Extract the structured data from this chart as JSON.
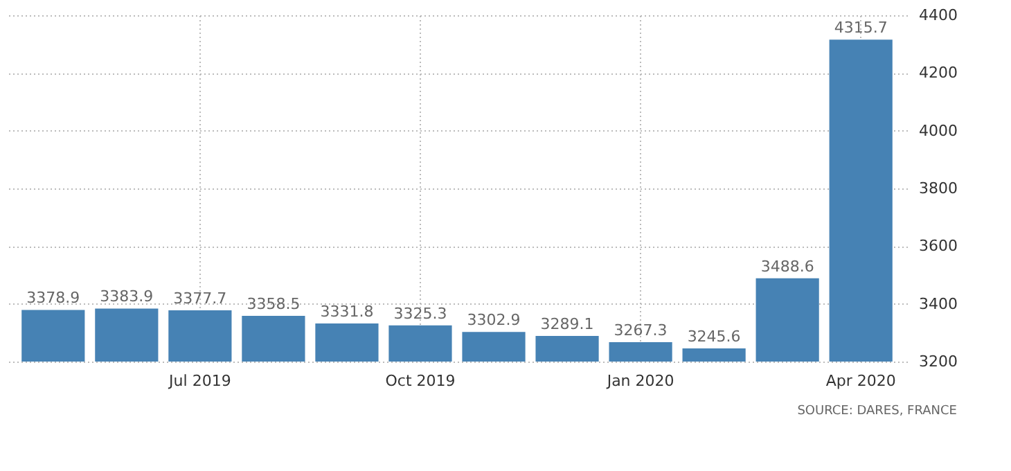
{
  "chart_data": {
    "type": "bar",
    "categories": [
      null,
      null,
      "Jul 2019",
      null,
      null,
      "Oct 2019",
      null,
      null,
      "Jan 2020",
      null,
      null,
      "Apr 2020"
    ],
    "values": [
      3378.9,
      3383.9,
      3377.7,
      3358.5,
      3331.8,
      3325.3,
      3302.9,
      3289.1,
      3267.3,
      3245.6,
      3488.6,
      4315.7
    ],
    "color": "#4682b4",
    "ylim": [
      3200,
      4400
    ],
    "yticks": [
      3200,
      3400,
      3600,
      3800,
      4000,
      4200,
      4400
    ],
    "grid": true,
    "data_labels": true,
    "annotations": [
      "SOURCE: DARES, FRANCE"
    ]
  }
}
